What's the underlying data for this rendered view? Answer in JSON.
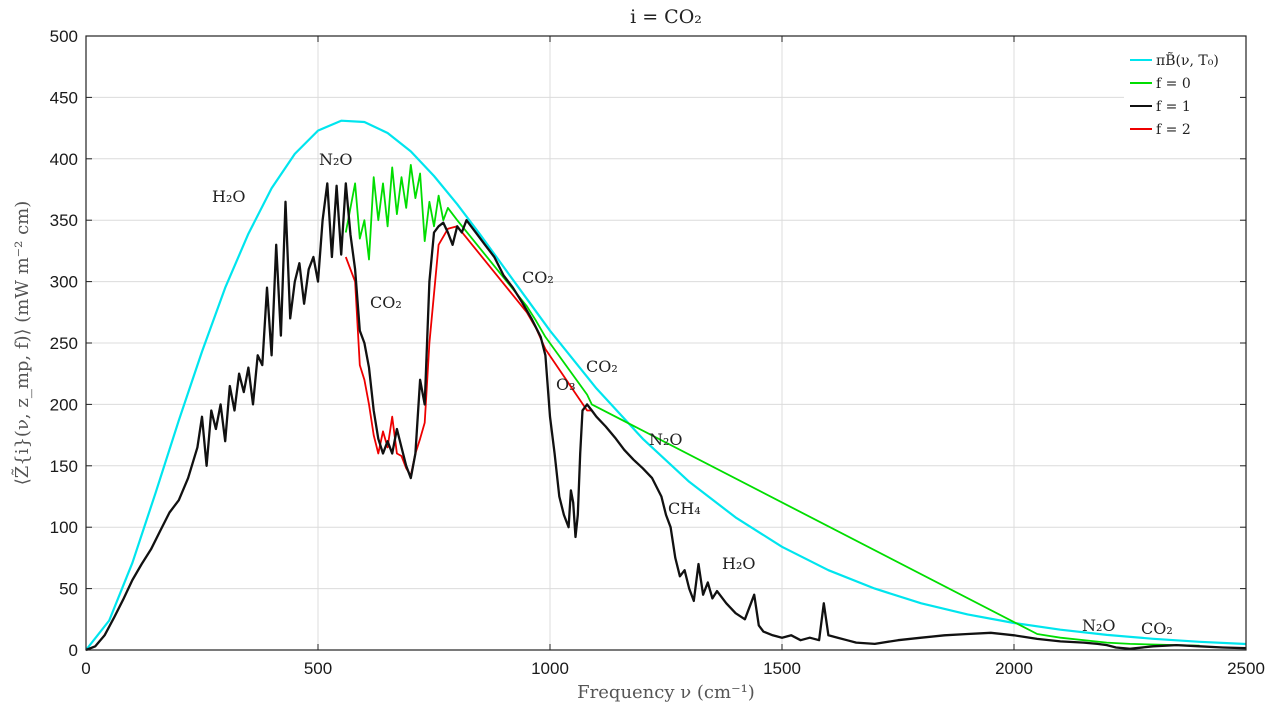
{
  "chart_data": {
    "type": "line",
    "title": "i = CO₂",
    "xlabel": "Frequency ν (cm⁻¹)",
    "ylabel": "⟨Z̃{i}(ν, z_mp, f)⟩ (mW m⁻² cm)",
    "xlim": [
      0,
      2500
    ],
    "ylim": [
      0,
      500
    ],
    "xticks": [
      0,
      500,
      1000,
      1500,
      2000,
      2500
    ],
    "yticks": [
      0,
      50,
      100,
      150,
      200,
      250,
      300,
      350,
      400,
      450,
      500
    ],
    "grid": true,
    "legend_position": "top-right",
    "series": [
      {
        "name": "πB̃(ν, T₀)",
        "color": "#00e5ee",
        "x": [
          0,
          50,
          100,
          150,
          200,
          250,
          300,
          350,
          400,
          450,
          500,
          550,
          600,
          650,
          700,
          750,
          800,
          850,
          900,
          950,
          1000,
          1100,
          1200,
          1300,
          1400,
          1500,
          1600,
          1700,
          1800,
          1900,
          2000,
          2100,
          2200,
          2300,
          2400,
          2500
        ],
        "y": [
          0,
          24,
          71,
          128,
          187,
          243,
          295,
          339,
          376,
          404,
          423,
          431,
          430,
          421,
          406,
          386,
          363,
          338,
          312,
          286,
          260,
          213,
          172,
          137,
          108,
          84,
          65,
          50,
          38,
          29,
          22,
          16.5,
          12.3,
          9.1,
          6.7,
          4.9
        ]
      },
      {
        "name": "f = 0",
        "color": "#00dd00",
        "x": [
          560,
          580,
          590,
          600,
          610,
          620,
          630,
          640,
          650,
          660,
          670,
          680,
          690,
          700,
          710,
          720,
          730,
          740,
          750,
          760,
          770,
          780,
          800,
          950,
          970,
          990,
          1080,
          1090,
          2050,
          2100,
          2200,
          2250,
          2300,
          2350,
          2400
        ],
        "y": [
          340,
          380,
          335,
          350,
          318,
          385,
          350,
          380,
          345,
          393,
          355,
          385,
          360,
          395,
          368,
          388,
          333,
          365,
          345,
          370,
          350,
          360,
          350,
          280,
          268,
          255,
          208,
          200,
          13,
          10,
          6,
          5,
          4.5,
          4,
          3.5
        ]
      },
      {
        "name": "f = 1",
        "color": "#111111",
        "x": [
          0,
          20,
          40,
          60,
          80,
          100,
          120,
          140,
          160,
          180,
          200,
          220,
          240,
          250,
          260,
          270,
          280,
          290,
          300,
          310,
          320,
          330,
          340,
          350,
          360,
          370,
          380,
          390,
          400,
          410,
          420,
          430,
          440,
          450,
          460,
          470,
          480,
          490,
          500,
          510,
          520,
          530,
          540,
          550,
          560,
          570,
          580,
          590,
          600,
          610,
          620,
          630,
          640,
          650,
          660,
          670,
          680,
          690,
          700,
          710,
          720,
          730,
          740,
          750,
          760,
          770,
          780,
          790,
          800,
          810,
          820,
          830,
          840,
          860,
          880,
          900,
          920,
          940,
          960,
          980,
          990,
          1000,
          1010,
          1020,
          1030,
          1040,
          1045,
          1050,
          1055,
          1060,
          1065,
          1070,
          1080,
          1090,
          1100,
          1120,
          1140,
          1160,
          1180,
          1200,
          1220,
          1240,
          1250,
          1260,
          1270,
          1280,
          1290,
          1300,
          1310,
          1320,
          1330,
          1340,
          1350,
          1360,
          1380,
          1400,
          1420,
          1440,
          1450,
          1460,
          1480,
          1500,
          1520,
          1540,
          1560,
          1580,
          1590,
          1600,
          1620,
          1640,
          1660,
          1700,
          1750,
          1800,
          1850,
          1900,
          1950,
          2000,
          2050,
          2100,
          2150,
          2180,
          2200,
          2220,
          2250,
          2300,
          2350,
          2400,
          2450,
          2500
        ],
        "y": [
          0,
          3,
          12,
          26,
          41,
          57,
          70,
          82,
          97,
          112,
          122,
          140,
          165,
          190,
          150,
          195,
          180,
          200,
          170,
          215,
          195,
          225,
          210,
          230,
          200,
          240,
          232,
          295,
          240,
          330,
          256,
          365,
          270,
          300,
          315,
          282,
          310,
          320,
          300,
          350,
          380,
          320,
          378,
          322,
          380,
          338,
          310,
          260,
          250,
          230,
          195,
          172,
          160,
          170,
          160,
          180,
          165,
          150,
          140,
          160,
          220,
          200,
          300,
          340,
          345,
          348,
          340,
          330,
          345,
          340,
          350,
          345,
          340,
          330,
          320,
          305,
          295,
          283,
          270,
          255,
          240,
          190,
          160,
          125,
          110,
          100,
          130,
          120,
          92,
          110,
          160,
          195,
          200,
          195,
          190,
          182,
          173,
          163,
          155,
          148,
          140,
          125,
          110,
          100,
          75,
          60,
          65,
          50,
          40,
          70,
          45,
          55,
          42,
          48,
          38,
          30,
          25,
          45,
          20,
          15,
          12,
          10,
          12,
          8,
          10,
          8,
          38,
          12,
          10,
          8,
          6,
          5,
          8,
          10,
          12,
          13,
          14,
          12,
          9,
          7,
          6,
          5,
          4,
          2,
          1,
          3,
          4,
          3,
          2,
          1.5
        ]
      },
      {
        "name": "f = 2",
        "color": "#ee0000",
        "x": [
          560,
          580,
          590,
          600,
          610,
          620,
          630,
          640,
          650,
          660,
          670,
          680,
          690,
          700,
          710,
          720,
          730,
          740,
          760,
          780,
          800,
          950,
          970,
          990,
          1080,
          1090
        ],
        "y": [
          320,
          300,
          232,
          220,
          200,
          175,
          160,
          178,
          165,
          190,
          160,
          158,
          148,
          142,
          160,
          172,
          185,
          250,
          330,
          343,
          345,
          275,
          262,
          245,
          195,
          195
        ]
      }
    ],
    "annotations": [
      "H₂O",
      "N₂O",
      "CO₂",
      "CO₂",
      "CO₂",
      "O₃",
      "CO₂",
      "N₂O",
      "CH₄",
      "H₂O",
      "N₂O",
      "CO₂"
    ]
  }
}
